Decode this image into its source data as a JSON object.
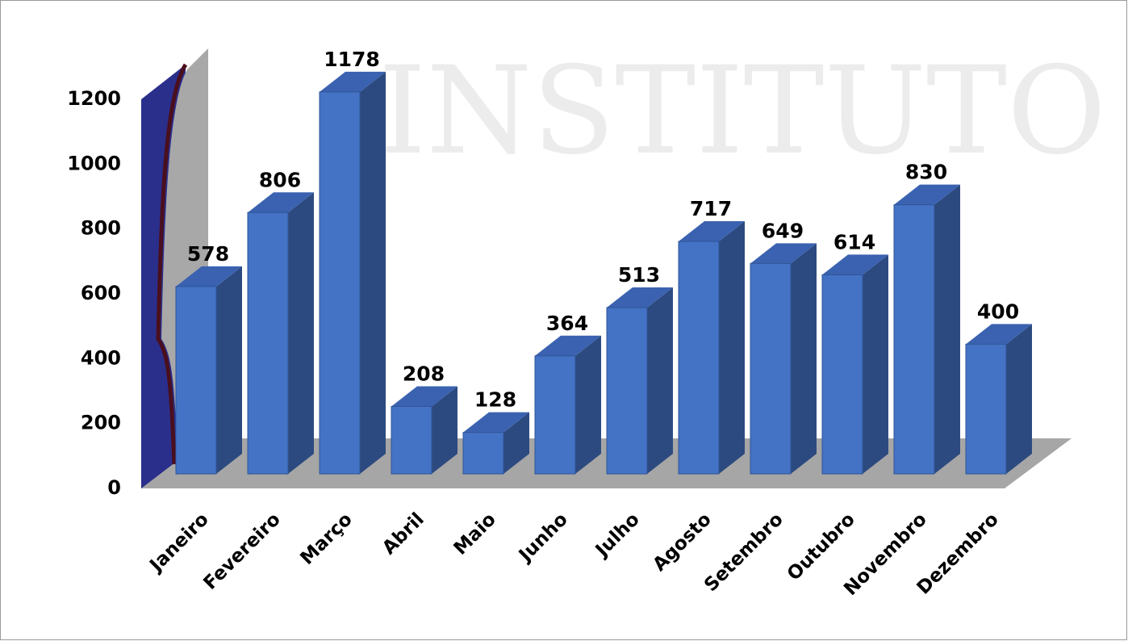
{
  "chart_data": {
    "type": "bar3d",
    "watermark": "INSTITUTO",
    "categories": [
      "Janeiro",
      "Fevereiro",
      "Março",
      "Abril",
      "Maio",
      "Junho",
      "Julho",
      "Agosto",
      "Setembro",
      "Outubro",
      "Novembro",
      "Dezembro"
    ],
    "values": [
      578,
      806,
      1178,
      208,
      128,
      364,
      513,
      717,
      649,
      614,
      830,
      400
    ],
    "color": "#4472c4",
    "ylim": [
      0,
      1200
    ],
    "yticks": [
      0,
      200,
      400,
      600,
      800,
      1000,
      1200
    ],
    "grid": false
  }
}
